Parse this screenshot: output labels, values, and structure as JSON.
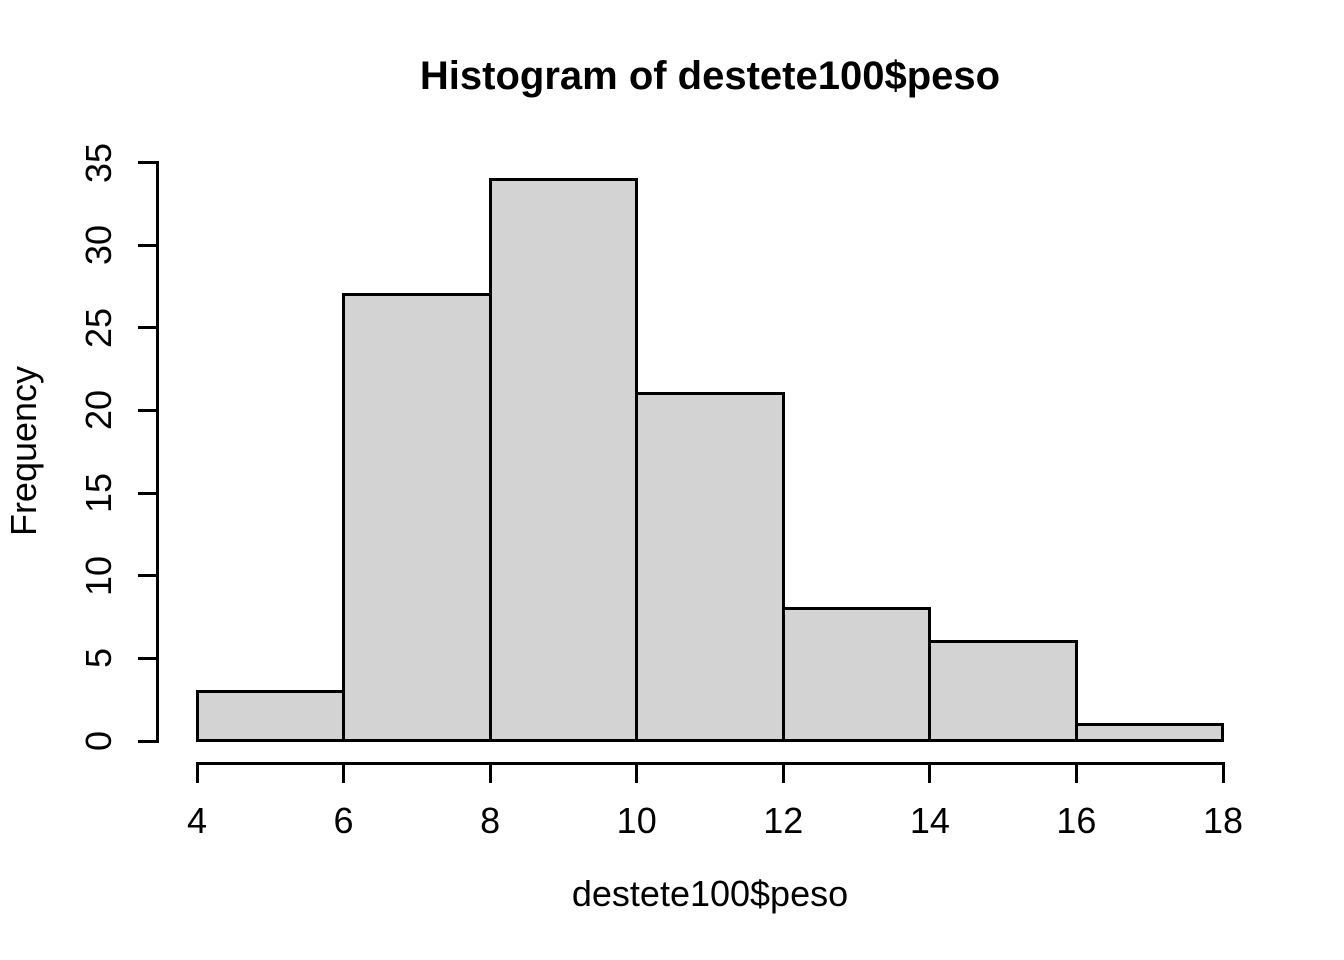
{
  "chart_data": {
    "type": "bar",
    "subtype": "histogram",
    "title": "Histogram of destete100$peso",
    "xlabel": "destete100$peso",
    "ylabel": "Frequency",
    "bin_edges": [
      4,
      6,
      8,
      10,
      12,
      14,
      16,
      18
    ],
    "counts": [
      3,
      27,
      34,
      21,
      8,
      6,
      1
    ],
    "categories": [
      "4-6",
      "6-8",
      "8-10",
      "10-12",
      "12-14",
      "14-16",
      "16-18"
    ],
    "x_ticks": [
      "4",
      "6",
      "8",
      "10",
      "12",
      "14",
      "16",
      "18"
    ],
    "y_ticks": [
      "0",
      "5",
      "10",
      "15",
      "20",
      "25",
      "30",
      "35"
    ],
    "xlim": [
      4,
      18
    ],
    "ylim": [
      0,
      35
    ],
    "grid": false,
    "legend_position": "none",
    "colors": {
      "bar_fill": "#d3d3d3",
      "bar_border": "#000000",
      "axis": "#000000",
      "text": "#000000",
      "background": "#ffffff"
    }
  }
}
